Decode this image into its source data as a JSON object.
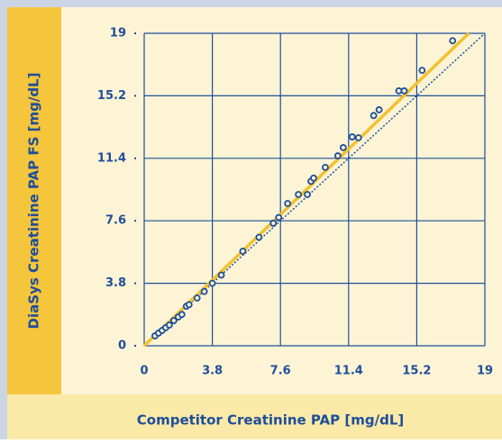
{
  "chart_data": {
    "type": "scatter",
    "x_label": "Competitor Creatinine PAP [mg/dL]",
    "y_label": "DiaSys Creatinine PAP  FS [mg/dL]",
    "xlim": [
      0,
      19
    ],
    "ylim": [
      0,
      19
    ],
    "xticks": [
      0,
      3.8,
      7.6,
      11.4,
      15.2,
      19
    ],
    "yticks": [
      0,
      3.8,
      7.6,
      11.4,
      15.2,
      19
    ],
    "grid": true,
    "series": [
      {
        "name": "Samples",
        "color": "#1f4e99",
        "x": [
          0.6,
          0.8,
          1.0,
          1.2,
          1.4,
          1.65,
          1.9,
          2.1,
          2.35,
          2.5,
          2.95,
          3.35,
          3.8,
          4.3,
          5.5,
          6.4,
          7.2,
          7.5,
          8.0,
          8.6,
          9.1,
          9.3,
          9.45,
          10.1,
          10.8,
          11.1,
          11.6,
          11.95,
          12.8,
          13.1,
          14.2,
          14.5,
          15.5,
          17.2
        ],
        "values": [
          0.6,
          0.77,
          0.93,
          1.1,
          1.26,
          1.53,
          1.75,
          1.9,
          2.4,
          2.5,
          2.9,
          3.3,
          3.8,
          4.3,
          5.75,
          6.6,
          7.45,
          7.8,
          8.65,
          9.2,
          9.2,
          10.0,
          10.2,
          10.85,
          11.55,
          12.05,
          12.7,
          12.65,
          14.0,
          14.35,
          15.5,
          15.5,
          16.75,
          18.55
        ]
      },
      {
        "name": "Regression",
        "color": "#f2c12e",
        "x": [
          0,
          18.1
        ],
        "values": [
          0,
          19
        ]
      },
      {
        "name": "Identity",
        "color": "#1f4e99",
        "x": [
          0,
          19
        ],
        "values": [
          0,
          19
        ]
      }
    ]
  }
}
